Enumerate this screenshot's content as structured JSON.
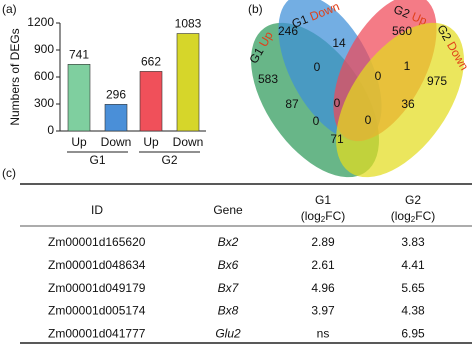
{
  "panels": [
    "(a)",
    "(b)",
    "(c)"
  ],
  "chart_data": {
    "type": "bar",
    "ylabel": "Numbers of DEGs",
    "categories": [
      "Up",
      "Down",
      "Up",
      "Down"
    ],
    "groups": [
      "G1",
      "G2"
    ],
    "values": [
      741,
      296,
      662,
      1083
    ],
    "colors": [
      "#7fcf9f",
      "#4a8fd8",
      "#f0505a",
      "#d6d62a"
    ],
    "value_label_color": "#2f6db5",
    "ylim": [
      0,
      1200
    ],
    "yticks": [
      0,
      300,
      600,
      900,
      1200
    ]
  },
  "venn": {
    "sets": [
      {
        "group": "G1",
        "direction": "Up",
        "color": "#2e9a5a"
      },
      {
        "group": "G1",
        "direction": "Down",
        "color": "#3d8fd8"
      },
      {
        "group": "G2",
        "direction": "Up",
        "color": "#f04858"
      },
      {
        "group": "G2",
        "direction": "Down",
        "color": "#e3dd1e"
      }
    ],
    "counts": [
      246,
      14,
      560,
      0,
      1,
      583,
      0,
      975,
      87,
      0,
      36,
      0,
      0,
      71
    ]
  },
  "table": {
    "header": [
      [
        "ID"
      ],
      [
        "Gene"
      ],
      [
        "G1",
        "(log",
        "2",
        "FC)"
      ],
      [
        "G2",
        "(log",
        "2",
        "FC)"
      ]
    ],
    "rows": [
      [
        "Zm00001d165620",
        "Bx2",
        "2.89",
        "3.83"
      ],
      [
        "Zm00001d048634",
        "Bx6",
        "2.61",
        "4.41"
      ],
      [
        "Zm00001d049179",
        "Bx7",
        "4.96",
        "5.65"
      ],
      [
        "Zm00001d005174",
        "Bx8",
        "3.97",
        "4.38"
      ],
      [
        "Zm00001d041777",
        "Glu2",
        "ns",
        "6.95"
      ]
    ]
  }
}
